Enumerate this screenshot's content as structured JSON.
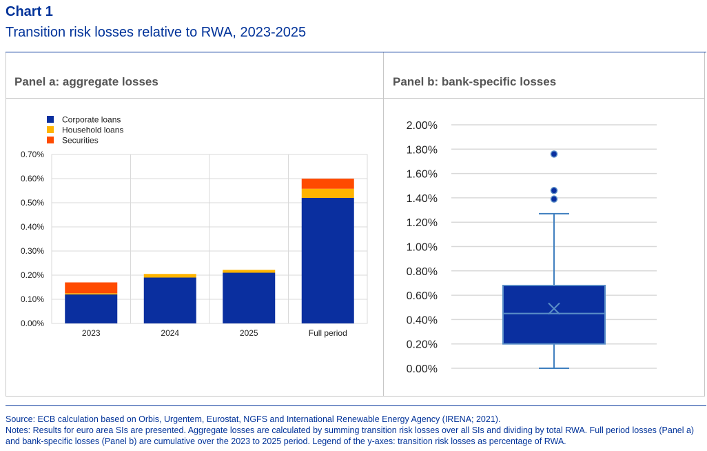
{
  "header": {
    "chart_label": "Chart 1",
    "title": "Transition risk losses relative to RWA, 2023-2025"
  },
  "colors": {
    "brand_blue": "#003299",
    "corporate": "#0a2f9f",
    "household": "#ffb400",
    "securities": "#ff4b00",
    "box_outline": "#5b8fc7",
    "whisker": "#3f7fbf",
    "grid": "#d9d9d9"
  },
  "chart_data": [
    {
      "type": "bar",
      "stacked": true,
      "title": "Panel a: aggregate losses",
      "categories": [
        "2023",
        "2024",
        "2025",
        "Full period"
      ],
      "series": [
        {
          "name": "Corporate loans",
          "values": [
            0.12,
            0.19,
            0.21,
            0.52
          ]
        },
        {
          "name": "Household loans",
          "values": [
            0.005,
            0.015,
            0.012,
            0.038
          ]
        },
        {
          "name": "Securities",
          "values": [
            0.045,
            0.0,
            0.0,
            0.042
          ]
        }
      ],
      "ylim": [
        0,
        0.7
      ],
      "yticks": [
        "0.00%",
        "0.10%",
        "0.20%",
        "0.30%",
        "0.40%",
        "0.50%",
        "0.60%",
        "0.70%"
      ],
      "grid": true,
      "legend_position": "top-left"
    },
    {
      "type": "box",
      "title": "Panel b: bank-specific losses",
      "ylim": [
        0,
        2.0
      ],
      "yticks": [
        "0.00%",
        "0.20%",
        "0.40%",
        "0.60%",
        "0.80%",
        "1.00%",
        "1.20%",
        "1.40%",
        "1.60%",
        "1.80%",
        "2.00%"
      ],
      "box": {
        "whisker_low": 0.0,
        "q1": 0.2,
        "median": 0.45,
        "q3": 0.68,
        "whisker_high": 1.27,
        "mean": 0.49
      },
      "outliers": [
        1.39,
        1.46,
        1.76
      ],
      "grid": true
    }
  ],
  "notes": {
    "source": "Source: ECB calculation based on Orbis, Urgentem, Eurostat, NGFS and International Renewable Energy Agency (IRENA; 2021).",
    "text": "Notes: Results for euro area SIs are presented. Aggregate losses are calculated by summing transition risk losses over all SIs and dividing by total RWA. Full period losses (Panel a) and bank-specific losses (Panel b) are cumulative over the 2023 to 2025 period. Legend of the y-axes: transition risk losses as percentage of RWA."
  }
}
